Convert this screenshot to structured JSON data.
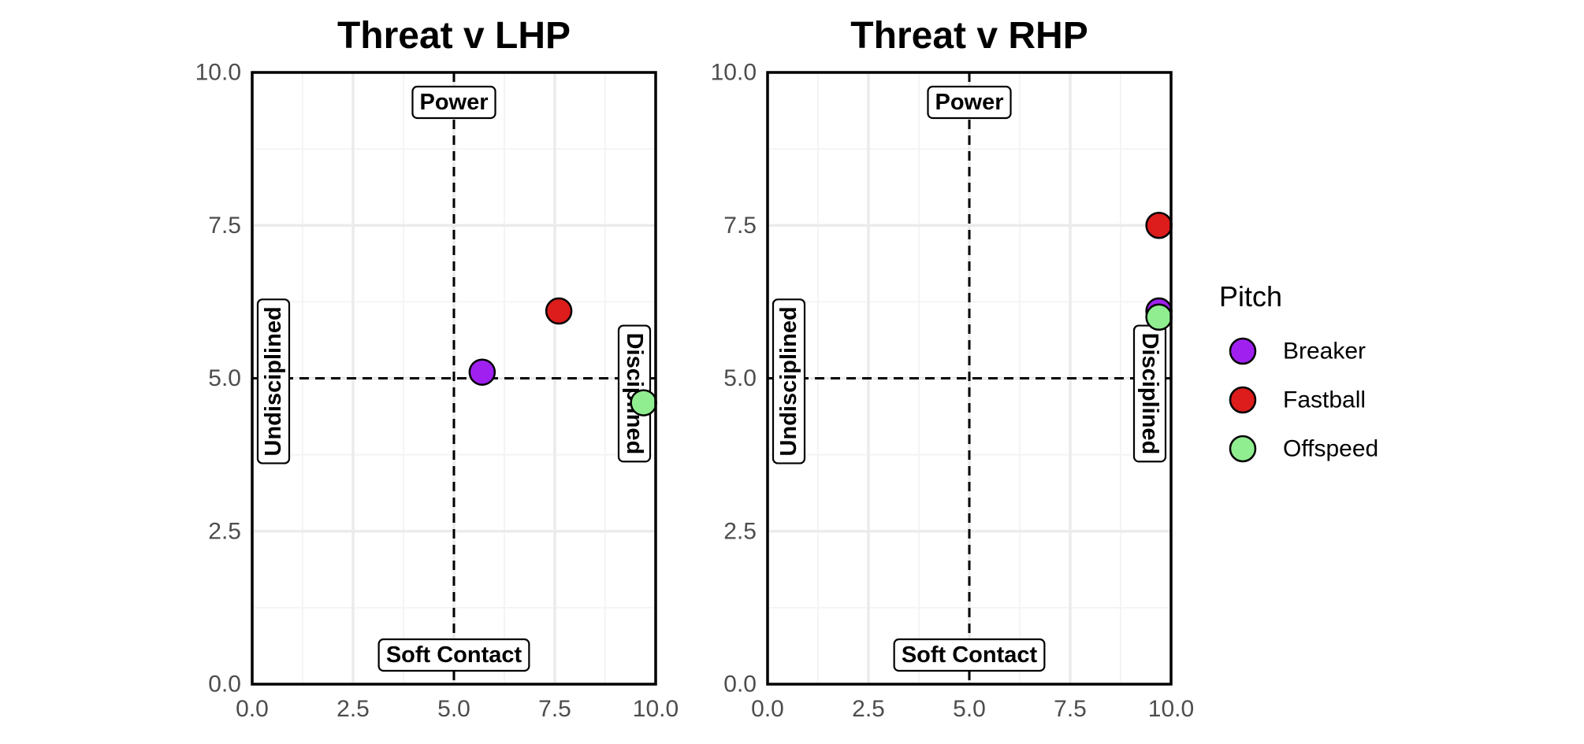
{
  "chart_data": [
    {
      "type": "scatter",
      "title": "Threat v LHP",
      "xlabel": "",
      "ylabel": "",
      "xlim": [
        0,
        10
      ],
      "ylim": [
        0,
        10
      ],
      "xticks": [
        "0.0",
        "2.5",
        "5.0",
        "7.5",
        "10.0"
      ],
      "yticks": [
        "0.0",
        "2.5",
        "5.0",
        "7.5",
        "10.0"
      ],
      "grid": true,
      "reference_lines": {
        "x": 5,
        "y": 5
      },
      "quadrant_labels": {
        "top": "Power",
        "bottom": "Soft Contact",
        "left": "Undisciplined",
        "right": "Disciplined"
      },
      "series": [
        {
          "name": "Breaker",
          "x": [
            5.7
          ],
          "y": [
            5.1
          ]
        },
        {
          "name": "Fastball",
          "x": [
            7.6
          ],
          "y": [
            6.1
          ]
        },
        {
          "name": "Offspeed",
          "x": [
            9.7
          ],
          "y": [
            4.6
          ]
        }
      ]
    },
    {
      "type": "scatter",
      "title": "Threat v RHP",
      "xlabel": "",
      "ylabel": "",
      "xlim": [
        0,
        10
      ],
      "ylim": [
        0,
        10
      ],
      "xticks": [
        "0.0",
        "2.5",
        "5.0",
        "7.5",
        "10.0"
      ],
      "yticks": [
        "0.0",
        "2.5",
        "5.0",
        "7.5",
        "10.0"
      ],
      "grid": true,
      "reference_lines": {
        "x": 5,
        "y": 5
      },
      "quadrant_labels": {
        "top": "Power",
        "bottom": "Soft Contact",
        "left": "Undisciplined",
        "right": "Disciplined"
      },
      "series": [
        {
          "name": "Breaker",
          "x": [
            9.7
          ],
          "y": [
            6.1
          ]
        },
        {
          "name": "Fastball",
          "x": [
            9.7
          ],
          "y": [
            7.5
          ]
        },
        {
          "name": "Offspeed",
          "x": [
            9.7
          ],
          "y": [
            6.0
          ]
        }
      ]
    }
  ],
  "legend": {
    "title": "Pitch",
    "position": "right",
    "items": [
      {
        "name": "Breaker",
        "color": "#a020f0"
      },
      {
        "name": "Fastball",
        "color": "#dd1c1c"
      },
      {
        "name": "Offspeed",
        "color": "#90ee90"
      }
    ]
  },
  "colors": {
    "text": "#000000",
    "tick": "#4d4d4d",
    "grid_major": "#ebebeb",
    "grid_minor": "#f4f4f4"
  }
}
